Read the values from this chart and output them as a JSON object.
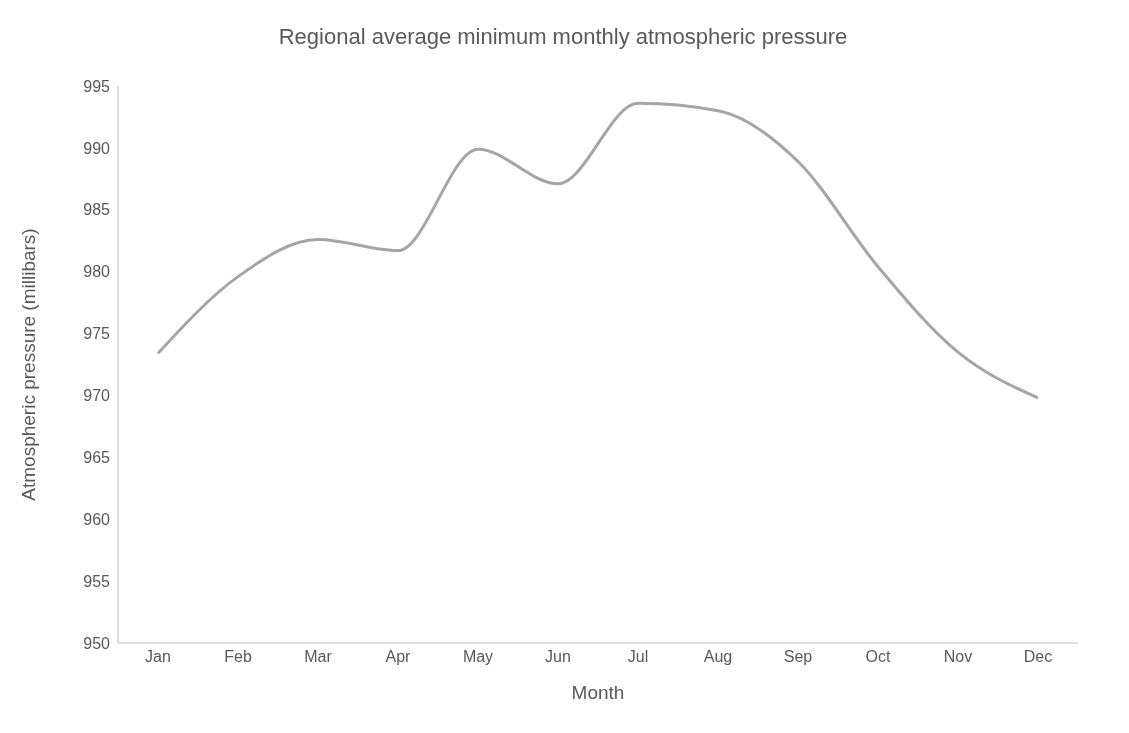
{
  "chart_data": {
    "type": "line",
    "title": "Regional average minimum monthly atmospheric pressure",
    "xlabel": "Month",
    "ylabel": "Atmospheric pressure (millibars)",
    "categories": [
      "Jan",
      "Feb",
      "Mar",
      "Apr",
      "May",
      "Jun",
      "Jul",
      "Aug",
      "Sep",
      "Oct",
      "Nov",
      "Dec"
    ],
    "series": [
      {
        "color": "#a5a5a5",
        "values": [
          973.4,
          979.6,
          982.6,
          981.7,
          989.9,
          987.1,
          993.6,
          993.0,
          988.9,
          980.4,
          973.5,
          969.8
        ]
      }
    ],
    "ylim": [
      950,
      995
    ],
    "yticks": [
      950,
      955,
      960,
      965,
      970,
      975,
      980,
      985,
      990,
      995
    ],
    "grid": false,
    "legend": false,
    "marker": "none",
    "line_style": "solid"
  }
}
